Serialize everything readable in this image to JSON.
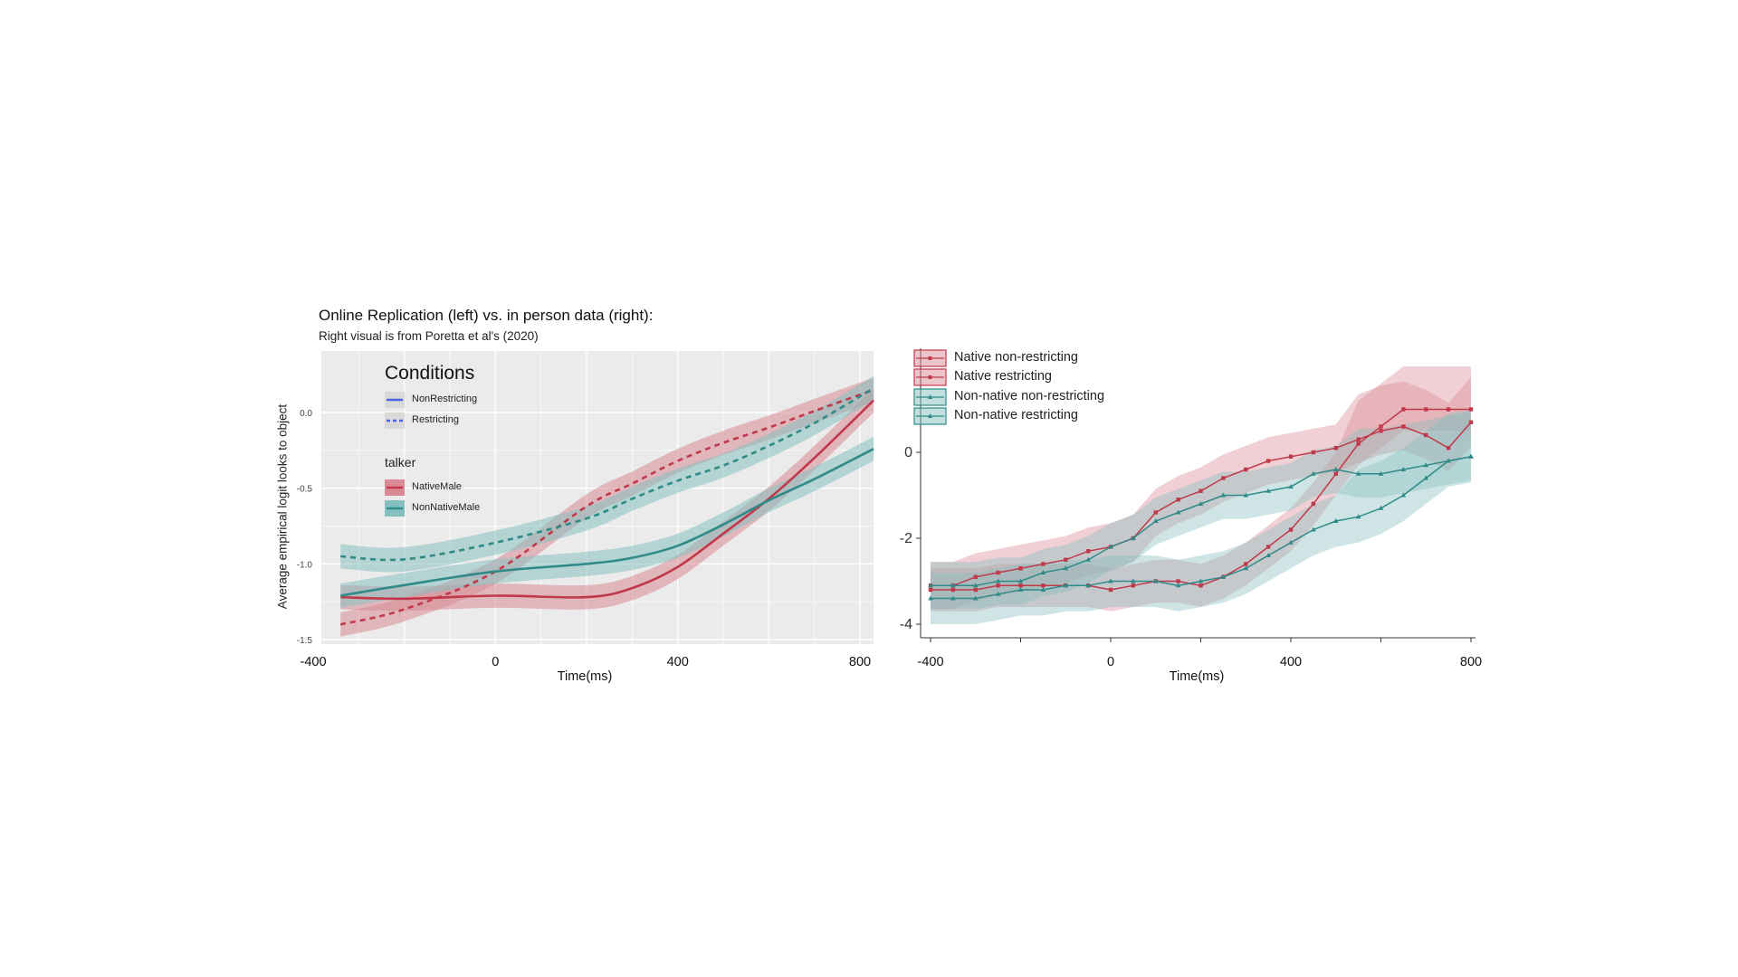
{
  "header": {
    "title": "Online Replication (left) vs. in person data (right):",
    "subtitle": "Right visual is from Poretta et al's (2020)"
  },
  "colors": {
    "native": "#c0394b",
    "nonnative": "#2f8a88",
    "native_band": "#d98a94",
    "nonnative_band": "#86bfbf",
    "legend_blue": "#4a63e0"
  },
  "chart_data": [
    {
      "type": "line",
      "title": "",
      "xlabel": "Time(ms)",
      "ylabel": "Average empirical logit looks to object",
      "xlim": [
        -340,
        830
      ],
      "ylim": [
        -1.5,
        0.2
      ],
      "x_tick_labels": [
        "-400",
        "0",
        "400",
        "800"
      ],
      "y_tick_labels": [
        "0.0",
        "-0.5",
        "-1.0",
        "-1.5"
      ],
      "grid": true,
      "legend": {
        "conditions_title": "Conditions",
        "conditions": [
          "NonRestricting",
          "Restricting"
        ],
        "talker_title": "talker",
        "talkers": [
          "NativeMale",
          "NonNativeMale"
        ]
      },
      "x": [
        -340,
        -200,
        0,
        200,
        300,
        400,
        500,
        600,
        700,
        830
      ],
      "series": [
        {
          "name": "NativeMale NonRestricting",
          "talker": "native",
          "dash": false,
          "band": 0.08,
          "values": [
            -1.22,
            -1.23,
            -1.21,
            -1.22,
            -1.16,
            -1.02,
            -0.8,
            -0.57,
            -0.3,
            0.08
          ]
        },
        {
          "name": "NativeMale Restricting",
          "talker": "native",
          "dash": true,
          "band": 0.08,
          "values": [
            -1.4,
            -1.3,
            -1.05,
            -0.62,
            -0.47,
            -0.32,
            -0.2,
            -0.1,
            0.01,
            0.15
          ]
        },
        {
          "name": "NonNativeMale NonRestricting",
          "talker": "nonnative",
          "dash": false,
          "band": 0.08,
          "values": [
            -1.21,
            -1.14,
            -1.05,
            -1.0,
            -0.96,
            -0.88,
            -0.74,
            -0.58,
            -0.44,
            -0.24
          ]
        },
        {
          "name": "NonNativeMale Restricting",
          "talker": "nonnative",
          "dash": true,
          "band": 0.08,
          "values": [
            -0.95,
            -0.97,
            -0.86,
            -0.7,
            -0.57,
            -0.45,
            -0.35,
            -0.22,
            -0.07,
            0.16
          ]
        }
      ]
    },
    {
      "type": "line",
      "title": "",
      "xlabel": "Time(ms)",
      "x_tick_labels": [
        "-400",
        "0",
        "400",
        "800"
      ],
      "y_tick_labels": [
        "0",
        "-2",
        "-4"
      ],
      "xlim": [
        -410,
        820
      ],
      "ylim": [
        -4.2,
        2.1
      ],
      "legend": {
        "position": "top-left"
      },
      "x": [
        -400,
        -350,
        -300,
        -250,
        -200,
        -150,
        -100,
        -50,
        0,
        50,
        100,
        150,
        200,
        250,
        300,
        350,
        400,
        450,
        500,
        550,
        600,
        650,
        700,
        750,
        800
      ],
      "series": [
        {
          "name": "Native non-restricting",
          "talker": "native",
          "marker": "square",
          "band": 0.5,
          "values": [
            -3.2,
            -3.2,
            -3.2,
            -3.1,
            -3.1,
            -3.1,
            -3.1,
            -3.1,
            -3.2,
            -3.1,
            -3.0,
            -3.0,
            -3.1,
            -2.9,
            -2.6,
            -2.2,
            -1.8,
            -1.2,
            -0.5,
            0.2,
            0.6,
            1.0,
            1.0,
            1.0,
            1.0
          ]
        },
        {
          "name": "Native restricting",
          "talker": "native",
          "marker": "square",
          "band": 0.55,
          "values": [
            -3.1,
            -3.1,
            -2.9,
            -2.8,
            -2.7,
            -2.6,
            -2.5,
            -2.3,
            -2.2,
            -2.0,
            -1.4,
            -1.1,
            -0.9,
            -0.6,
            -0.4,
            -0.2,
            -0.1,
            0.0,
            0.1,
            0.3,
            0.5,
            0.6,
            0.4,
            0.1,
            0.7
          ]
        },
        {
          "name": "Non-native non-restricting",
          "talker": "nonnative",
          "marker": "triangle",
          "band": 0.55,
          "values": [
            -3.1,
            -3.1,
            -3.1,
            -3.0,
            -3.0,
            -2.8,
            -2.7,
            -2.5,
            -2.2,
            -2.0,
            -1.6,
            -1.4,
            -1.2,
            -1.0,
            -1.0,
            -0.9,
            -0.8,
            -0.5,
            -0.4,
            -0.5,
            -0.5,
            -0.4,
            -0.3,
            -0.2,
            -0.1
          ]
        },
        {
          "name": "Non-native restricting",
          "talker": "nonnative",
          "marker": "triangle",
          "band": 0.6,
          "values": [
            -3.4,
            -3.4,
            -3.4,
            -3.3,
            -3.2,
            -3.2,
            -3.1,
            -3.1,
            -3.0,
            -3.0,
            -3.0,
            -3.1,
            -3.0,
            -2.9,
            -2.7,
            -2.4,
            -2.1,
            -1.8,
            -1.6,
            -1.5,
            -1.3,
            -1.0,
            -0.6,
            -0.2,
            -0.1
          ]
        }
      ]
    }
  ]
}
